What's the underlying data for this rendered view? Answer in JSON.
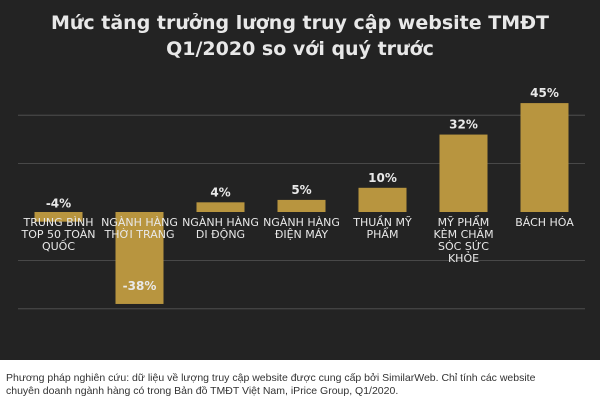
{
  "chart_data": {
    "type": "bar",
    "title_lines": [
      "Mức tăng trưởng lượng truy cập website TMĐT",
      "Q1/2020 so với quý trước"
    ],
    "categories": [
      [
        "TRUNG BÌNH",
        "TOP 50 TOÀN",
        "QUỐC"
      ],
      [
        "NGÀNH HÀNG",
        "THỜI TRANG"
      ],
      [
        "NGÀNH HÀNG",
        "DI ĐỘNG"
      ],
      [
        "NGÀNH HÀNG",
        "ĐIỆN MÁY"
      ],
      [
        "THUẦN MỸ",
        "PHẨM"
      ],
      [
        "MỸ PHẨM",
        "KÈM CHĂM",
        "SÓC SỨC",
        "KHỎE"
      ],
      [
        "BÁCH HÓA"
      ]
    ],
    "values": [
      -4,
      -38,
      4,
      5,
      10,
      32,
      45
    ],
    "data_labels": [
      "-4%",
      "-38%",
      "4%",
      "5%",
      "10%",
      "32%",
      "45%"
    ],
    "ylim": [
      -45,
      50
    ],
    "grid": true,
    "legend": "none",
    "colors": {
      "bar": "#b8953f",
      "background": "#232323",
      "grid": "#555555",
      "text": "#e8e8e8"
    }
  },
  "caption_lines": [
    "Phương pháp nghiên cứu: dữ liệu về lượng truy cập website được cung cấp bởi SimilarWeb. Chỉ tính các website",
    "chuyên doanh ngành hàng có trong Bản đồ TMĐT Việt Nam, iPrice Group, Q1/2020."
  ]
}
